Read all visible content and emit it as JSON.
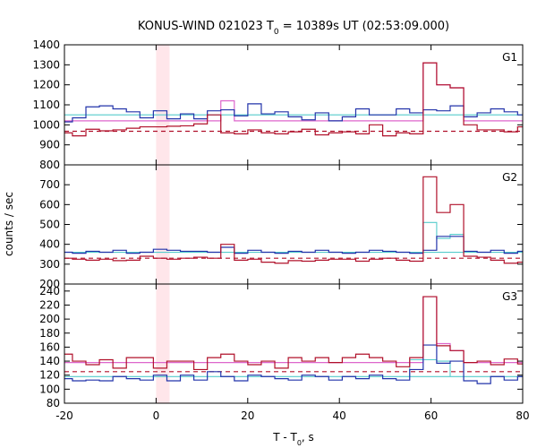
{
  "chart_data": {
    "type": "line",
    "title_prefix": "KONUS-WIND 021023 T",
    "title_sub": "0",
    "title_suffix": " = 10389s UT (02:53:09.000)",
    "xlabel_prefix": "T - T",
    "xlabel_sub": "0",
    "xlabel_suffix": ", s",
    "ylabel": "counts / sec",
    "xlim": [
      -20,
      80
    ],
    "xticks": [
      -20,
      0,
      20,
      40,
      60,
      80
    ],
    "highlight_band": [
      0,
      2.944
    ],
    "bin_width": 2.944,
    "bin_start": -21.2,
    "colors": {
      "red": "#b0102a",
      "blue": "#2233aa",
      "cyan": "#55cccc",
      "magenta": "#dd66cc",
      "band": "#ffe6ea"
    },
    "panels": [
      {
        "label": "G1",
        "ylim": [
          800,
          1400
        ],
        "yticks": [
          800,
          900,
          1000,
          1100,
          1200,
          1300,
          1400
        ],
        "background_level": 968,
        "cyan_level": 1050,
        "cyan_bins": [],
        "series": [
          {
            "color": "red",
            "values": [
              960,
              945,
              978,
              970,
              975,
              983,
              990,
              990,
              993,
              995,
              1005,
              1050,
              960,
              955,
              975,
              960,
              955,
              965,
              978,
              950,
              960,
              965,
              955,
              1000,
              945,
              960,
              955,
              1310,
              1200,
              1185,
              1000,
              975,
              975,
              965,
              990,
              975,
              955,
              950,
              980,
              1000,
              955,
              1000,
              975,
              945,
              980,
              975,
              960,
              965,
              975,
              960
            ]
          },
          {
            "color": "blue",
            "values": [
              1015,
              1035,
              1090,
              1095,
              1080,
              1065,
              1035,
              1070,
              1030,
              1055,
              1030,
              1070,
              1075,
              1045,
              1105,
              1055,
              1065,
              1040,
              1025,
              1060,
              1020,
              1040,
              1080,
              1050,
              1050,
              1080,
              1060,
              1075,
              1070,
              1095,
              1040,
              1060,
              1080,
              1065,
              1050,
              1020,
              1040,
              1030,
              1070,
              1095,
              1045,
              1080,
              1020,
              1060,
              1100,
              1070,
              1070,
              1060,
              1065,
              1045
            ]
          },
          {
            "color": "magenta",
            "values": [
              1020,
              1020,
              1020,
              1020,
              1020,
              1020,
              1020,
              1020,
              1020,
              1020,
              1020,
              1020,
              1120,
              1020,
              1020,
              1020,
              1020,
              1020,
              1020,
              1020,
              1020,
              1020,
              1020,
              1020,
              1020,
              1020,
              1020,
              1310,
              1200,
              1185,
              1020,
              1020,
              1020,
              1020,
              1020,
              1020,
              1020,
              1020,
              1020,
              1020,
              1020,
              1020,
              1020,
              1020,
              1020,
              1020,
              1020,
              1020,
              1020,
              1020
            ]
          }
        ]
      },
      {
        "label": "G2",
        "ylim": [
          200,
          800
        ],
        "yticks": [
          200,
          300,
          400,
          500,
          600,
          700,
          800
        ],
        "background_level": 330,
        "cyan_level": 360,
        "cyan_bins": [
          [
            27,
            510
          ],
          [
            28,
            430
          ],
          [
            29,
            450
          ]
        ],
        "series": [
          {
            "color": "red",
            "values": [
              330,
              325,
              320,
              325,
              318,
              320,
              340,
              330,
              325,
              330,
              335,
              330,
              400,
              320,
              325,
              310,
              305,
              318,
              315,
              320,
              325,
              325,
              315,
              325,
              330,
              320,
              315,
              740,
              560,
              600,
              340,
              335,
              320,
              305,
              310,
              315,
              325,
              320,
              315,
              345,
              320,
              330,
              320,
              305,
              340,
              320,
              310,
              325,
              335,
              310
            ]
          },
          {
            "color": "blue",
            "values": [
              360,
              355,
              365,
              360,
              370,
              355,
              360,
              375,
              370,
              365,
              365,
              360,
              385,
              355,
              370,
              360,
              355,
              365,
              360,
              370,
              360,
              355,
              360,
              370,
              365,
              360,
              355,
              370,
              440,
              440,
              365,
              360,
              370,
              355,
              365,
              360,
              370,
              355,
              365,
              360,
              355,
              350,
              365,
              360,
              355,
              370,
              360,
              360,
              365,
              360
            ]
          }
        ]
      },
      {
        "label": "G3",
        "ylim": [
          80,
          250
        ],
        "yticks": [
          80,
          100,
          120,
          140,
          160,
          180,
          200,
          220,
          240
        ],
        "background_level": 125,
        "cyan_level": 118,
        "cyan_bins": [
          [
            26,
            142
          ],
          [
            27,
            142
          ],
          [
            28,
            140
          ]
        ],
        "series": [
          {
            "color": "red",
            "values": [
              150,
              140,
              135,
              142,
              130,
              145,
              145,
              130,
              140,
              140,
              128,
              145,
              150,
              140,
              135,
              140,
              130,
              145,
              140,
              145,
              138,
              145,
              150,
              145,
              140,
              132,
              145,
              232,
              162,
              155,
              138,
              140,
              135,
              143,
              136,
              145,
              128,
              145,
              150,
              140,
              145,
              140,
              135,
              142,
              135,
              145,
              140,
              148,
              145,
              135
            ]
          },
          {
            "color": "blue",
            "values": [
              115,
              112,
              113,
              112,
              118,
              115,
              113,
              120,
              112,
              120,
              113,
              125,
              118,
              112,
              120,
              118,
              115,
              113,
              120,
              118,
              113,
              118,
              115,
              120,
              115,
              113,
              128,
              163,
              137,
              140,
              112,
              108,
              118,
              113,
              118,
              112,
              110,
              115,
              118,
              115,
              118,
              112,
              118,
              115,
              118,
              113,
              120,
              118,
              112,
              118
            ]
          },
          {
            "color": "magenta",
            "values": [
              138,
              138,
              138,
              138,
              138,
              138,
              138,
              138,
              138,
              138,
              138,
              138,
              138,
              138,
              138,
              138,
              138,
              138,
              138,
              138,
              138,
              138,
              138,
              138,
              138,
              138,
              138,
              232,
              165,
              155,
              138,
              138,
              138,
              138,
              138,
              138,
              138,
              138,
              138,
              138,
              138,
              138,
              138,
              138,
              138,
              138,
              138,
              138,
              138,
              138
            ]
          }
        ]
      }
    ]
  }
}
